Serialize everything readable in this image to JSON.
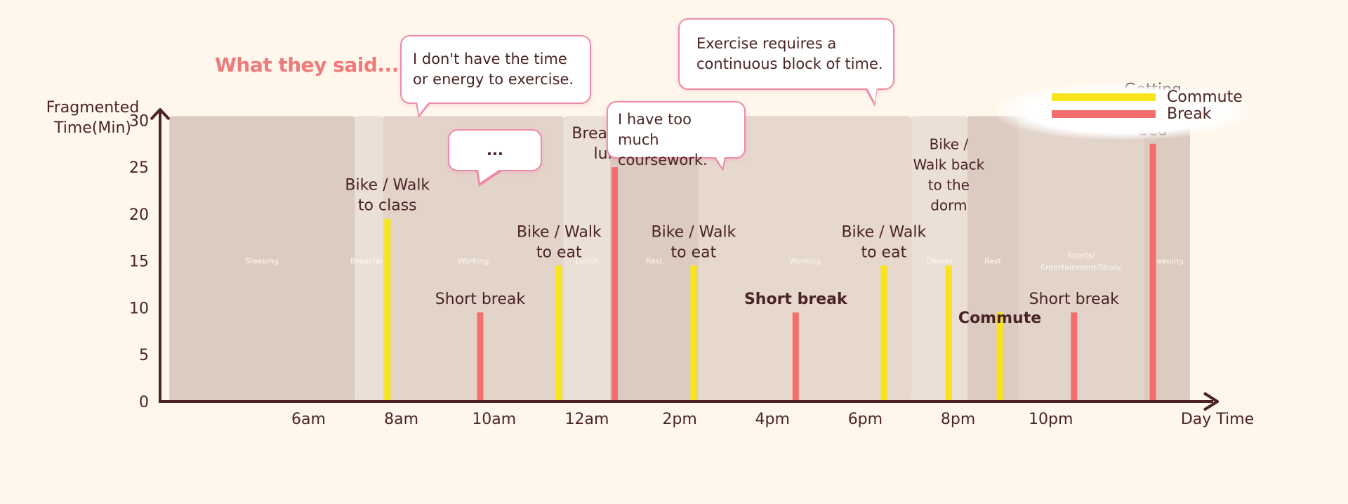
{
  "heading": "What they said...",
  "quotes": [
    {
      "text": "I don't have the time or energy to exercise."
    },
    {
      "text": "Exercise requires a continuous block of time."
    },
    {
      "text": "I have too much coursework."
    },
    {
      "text": "..."
    }
  ],
  "legend": [
    {
      "label": "Commute",
      "color": "#f9e41c"
    },
    {
      "label": "Break",
      "color": "#f56e6e"
    }
  ],
  "chart_data": {
    "type": "bar",
    "ylabel": "Fragmented Time(Min)",
    "xlabel": "Day Time",
    "ylim": [
      0,
      31
    ],
    "xlim": [
      2.8,
      25.5
    ],
    "y_ticks": [
      0,
      5,
      10,
      15,
      20,
      25,
      30
    ],
    "x_ticks": [
      {
        "label": "6am",
        "value": 6
      },
      {
        "label": "8am",
        "value": 8
      },
      {
        "label": "10am",
        "value": 10
      },
      {
        "label": "12am",
        "value": 12
      },
      {
        "label": "2pm",
        "value": 14
      },
      {
        "label": "4pm",
        "value": 16
      },
      {
        "label": "6pm",
        "value": 18
      },
      {
        "label": "8pm",
        "value": 20
      },
      {
        "label": "10pm",
        "value": 22
      }
    ],
    "periods": [
      {
        "label": "Sleeping",
        "start": 3.0,
        "end": 7.0,
        "shade": "#dbcbc0"
      },
      {
        "label": "Breakfast",
        "start": 7.0,
        "end": 7.6,
        "shade": "#ebe0d6"
      },
      {
        "label": "Working",
        "start": 7.6,
        "end": 11.5,
        "shade": "#e3d4ca"
      },
      {
        "label": "Lunch",
        "start": 11.5,
        "end": 12.5,
        "shade": "#ebe0d6"
      },
      {
        "label": "Rest",
        "start": 12.5,
        "end": 14.4,
        "shade": "#dbcbc0"
      },
      {
        "label": "Working",
        "start": 14.4,
        "end": 19.0,
        "shade": "#e6d8cd"
      },
      {
        "label": "Dinner",
        "start": 19.0,
        "end": 20.2,
        "shade": "#ebe0d6"
      },
      {
        "label": "Rest",
        "start": 20.2,
        "end": 21.3,
        "shade": "#dbcbc0"
      },
      {
        "label": "Sports/ Entertainment/Study",
        "start": 21.3,
        "end": 24.0,
        "shade": "#e3d4ca"
      },
      {
        "label": "Sleeping",
        "start": 24.0,
        "end": 25.0,
        "shade": "#dbcbc0"
      }
    ],
    "series": [
      {
        "name": "Commute",
        "color": "#f9e41c",
        "points": [
          {
            "x": 7.7,
            "y": 19.5
          },
          {
            "x": 11.4,
            "y": 14.5
          },
          {
            "x": 14.3,
            "y": 14.5
          },
          {
            "x": 18.4,
            "y": 14.5
          },
          {
            "x": 19.8,
            "y": 14.5
          },
          {
            "x": 20.9,
            "y": 9.5
          }
        ]
      },
      {
        "name": "Break",
        "color": "#f56e6e",
        "points": [
          {
            "x": 9.7,
            "y": 9.5
          },
          {
            "x": 12.6,
            "y": 25.0
          },
          {
            "x": 16.5,
            "y": 9.5
          },
          {
            "x": 22.5,
            "y": 9.5
          },
          {
            "x": 24.2,
            "y": 27.5
          }
        ]
      }
    ],
    "annotations": [
      {
        "text": "Bike / Walk to class",
        "x": 7.7,
        "y": 19.5,
        "bold": false
      },
      {
        "text": "Short break",
        "x": 9.7,
        "y": 9.5,
        "bold": false
      },
      {
        "text": "Bike / Walk to eat",
        "x": 11.4,
        "y": 14.5,
        "bold": false
      },
      {
        "text": "Break after lunch",
        "x": 12.6,
        "y": 25.0,
        "bold": false
      },
      {
        "text": "Bike / Walk to eat",
        "x": 14.3,
        "y": 14.5,
        "bold": false
      },
      {
        "text": "Short break",
        "x": 16.5,
        "y": 9.5,
        "bold": true
      },
      {
        "text": "Bike / Walk to eat",
        "x": 18.4,
        "y": 14.5,
        "bold": false
      },
      {
        "text": "Bike / Walk back to the dorm",
        "x": 19.8,
        "y": 19.5,
        "bold": false
      },
      {
        "text": "Commute",
        "x": 20.9,
        "y": 7.5,
        "bold": true
      },
      {
        "text": "Short break",
        "x": 22.5,
        "y": 9.5,
        "bold": false
      },
      {
        "text": "Getting ready for bed",
        "x": 24.2,
        "y": 27.5,
        "bold": false
      }
    ]
  }
}
